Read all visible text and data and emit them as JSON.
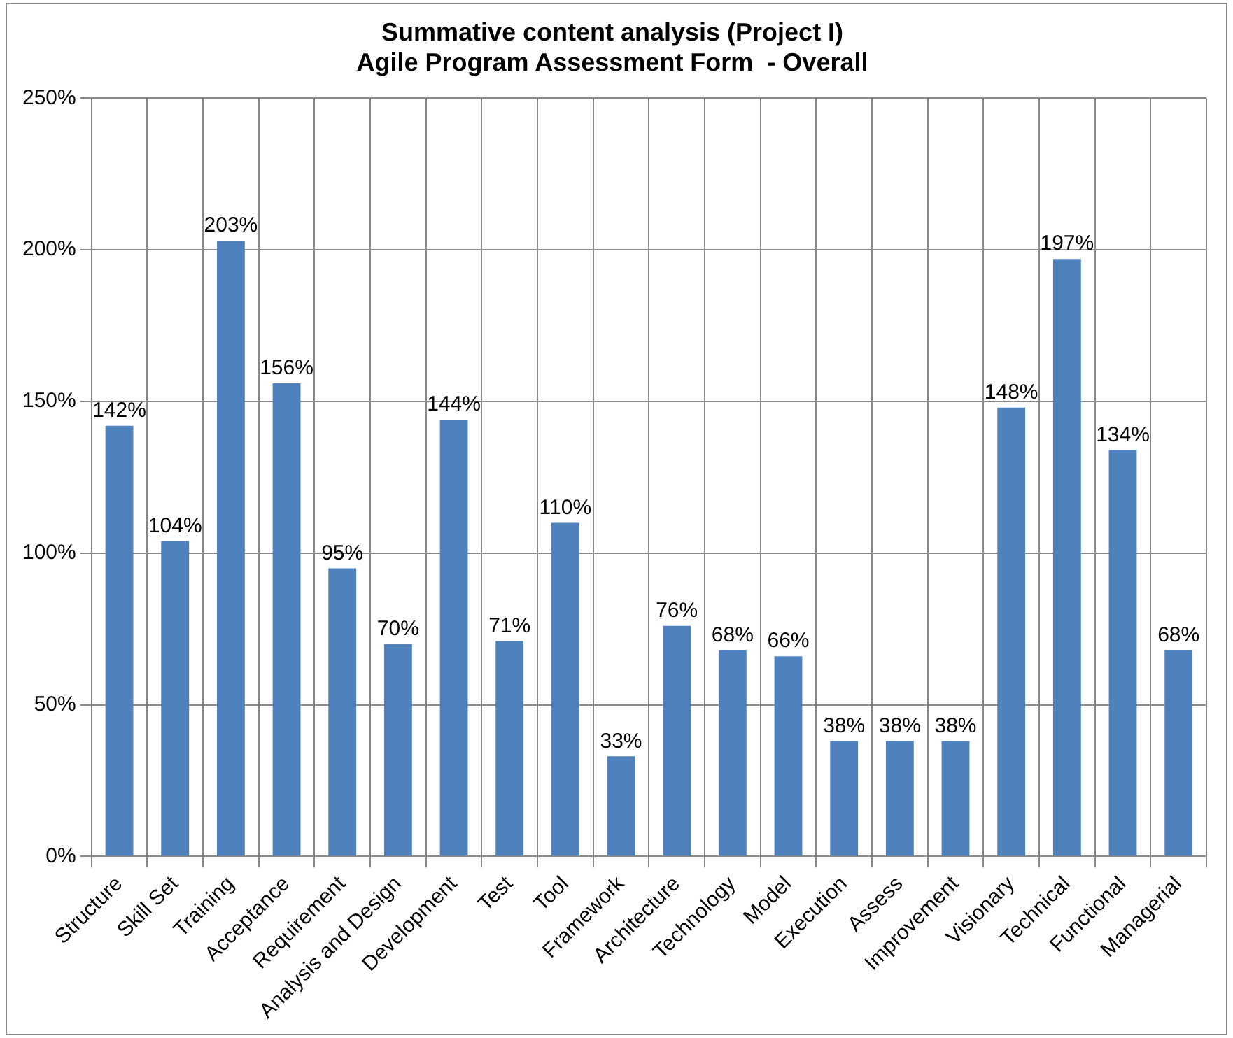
{
  "chart_data": {
    "type": "bar",
    "title": "Summative content analysis (Project I)",
    "subtitle": "Agile Program Assessment Form  - Overall",
    "categories": [
      "Structure",
      "Skill Set",
      "Training",
      "Acceptance",
      "Requirement",
      "Analysis and Design",
      "Development",
      "Test",
      "Tool",
      "Framework",
      "Architecture",
      "Technology",
      "Model",
      "Execution",
      "Assess",
      "Improvement",
      "Visionary",
      "Technical",
      "Functional",
      "Managerial"
    ],
    "values": [
      142,
      104,
      203,
      156,
      95,
      70,
      144,
      71,
      110,
      33,
      76,
      68,
      66,
      38,
      38,
      38,
      148,
      197,
      134,
      68
    ],
    "value_labels": [
      "142%",
      "104%",
      "203%",
      "156%",
      "95%",
      "70%",
      "144%",
      "71%",
      "110%",
      "33%",
      "76%",
      "68%",
      "66%",
      "38%",
      "38%",
      "38%",
      "148%",
      "197%",
      "134%",
      "68%"
    ],
    "color": "#4f81bd",
    "ylim": [
      0,
      250
    ],
    "yticks": [
      {
        "value": 0,
        "label": "0%"
      },
      {
        "value": 50,
        "label": "50%"
      },
      {
        "value": 100,
        "label": "100%"
      },
      {
        "value": 150,
        "label": "150%"
      },
      {
        "value": 200,
        "label": "200%"
      },
      {
        "value": 250,
        "label": "250%"
      }
    ],
    "grid": true
  }
}
